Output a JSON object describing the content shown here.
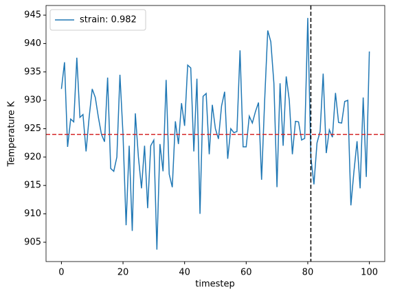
{
  "chart_data": {
    "type": "line",
    "xlabel": "timestep",
    "ylabel": "Temperature K",
    "x": [
      0,
      1,
      2,
      3,
      4,
      5,
      6,
      7,
      8,
      9,
      10,
      11,
      12,
      13,
      14,
      15,
      16,
      17,
      18,
      19,
      20,
      21,
      22,
      23,
      24,
      25,
      26,
      27,
      28,
      29,
      30,
      31,
      32,
      33,
      34,
      35,
      36,
      37,
      38,
      39,
      40,
      41,
      42,
      43,
      44,
      45,
      46,
      47,
      48,
      49,
      50,
      51,
      52,
      53,
      54,
      55,
      56,
      57,
      58,
      59,
      60,
      61,
      62,
      63,
      64,
      65,
      66,
      67,
      68,
      69,
      70,
      71,
      72,
      73,
      74,
      75,
      76,
      77,
      78,
      79,
      80,
      81,
      82,
      83,
      84,
      85,
      86,
      87,
      88,
      89,
      90,
      91,
      92,
      93,
      94,
      95,
      96,
      97,
      98,
      99,
      100
    ],
    "series": [
      {
        "name": "strain: 0.982",
        "color": "#1f77b4",
        "values": [
          932,
          936.7,
          921.8,
          926.7,
          926.2,
          937.5,
          927,
          927.5,
          921,
          927,
          932,
          930.5,
          927,
          924,
          922.7,
          934,
          918,
          917.5,
          920,
          934.5,
          924,
          908,
          922,
          907,
          927.7,
          920,
          914.5,
          922,
          911,
          922,
          923,
          903.7,
          922.3,
          917.5,
          933.6,
          917,
          914.7,
          926.3,
          922.3,
          929.5,
          925.5,
          936.2,
          935.7,
          921,
          933.8,
          910,
          930.7,
          931.2,
          920.5,
          929.2,
          925,
          923.2,
          929,
          931.5,
          919.7,
          925,
          924.3,
          924.5,
          938.8,
          921.8,
          921.8,
          927.2,
          926,
          928,
          929.6,
          916,
          930,
          942.3,
          940.3,
          933,
          914.7,
          933,
          922,
          934.2,
          930,
          920.5,
          926.3,
          926.2,
          923,
          923.3,
          944.5,
          920,
          915.2,
          922.5,
          924.5,
          934.7,
          920.7,
          924.8,
          923.5,
          931.3,
          926.1,
          926,
          929.8,
          930,
          911.5,
          917.5,
          922.8,
          914.5,
          930.5,
          916.5,
          938.6
        ]
      }
    ],
    "hlines": [
      {
        "value": 924,
        "color": "#d62728"
      }
    ],
    "vlines": [
      {
        "value": 81,
        "color": "#000000"
      }
    ],
    "xlim": [
      -5,
      105
    ],
    "xticks": [
      0,
      20,
      40,
      60,
      80,
      100
    ],
    "ylim": [
      901.6,
      946.7
    ],
    "yticks": [
      905,
      910,
      915,
      920,
      925,
      930,
      935,
      940,
      945
    ],
    "legend": "upper left"
  }
}
